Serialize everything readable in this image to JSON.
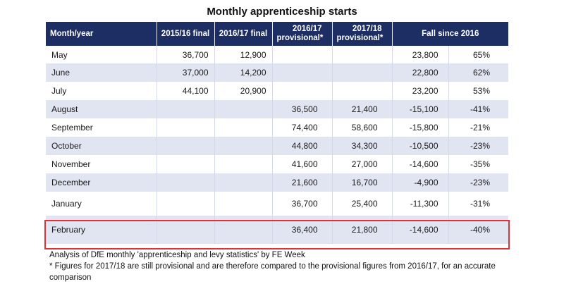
{
  "title": "Monthly apprenticeship starts",
  "chart_data": {
    "type": "table",
    "title": "Monthly apprenticeship starts",
    "columns": [
      "Month/year",
      "2015/16 final",
      "2016/17 final",
      "2016/17 provisional*",
      "2017/18 provisional*",
      "Fall since 2016",
      ""
    ],
    "headers": {
      "month": "Month/year",
      "c1516": "2015/16 final",
      "c1617": "2016/17 final",
      "p1617_a": "2016/17",
      "p1617_b": "provisional*",
      "p1718_a": "2017/18",
      "p1718_b": "provisional*",
      "fall": "Fall since 2016"
    },
    "rows": [
      [
        "May",
        "36,700",
        "12,900",
        "",
        "",
        "23,800",
        "65%"
      ],
      [
        "June",
        "37,000",
        "14,200",
        "",
        "",
        "22,800",
        "62%"
      ],
      [
        "July",
        "44,100",
        "20,900",
        "",
        "",
        "23,200",
        "53%"
      ],
      [
        "August",
        "",
        "",
        "36,500",
        "21,400",
        "-15,100",
        "-41%"
      ],
      [
        "September",
        "",
        "",
        "74,400",
        "58,600",
        "-15,800",
        "-21%"
      ],
      [
        "October",
        "",
        "",
        "44,800",
        "34,300",
        "-10,500",
        "-23%"
      ],
      [
        "November",
        "",
        "",
        "41,600",
        "27,000",
        "-14,600",
        "-35%"
      ],
      [
        "December",
        "",
        "",
        "21,600",
        "16,700",
        "-4,900",
        "-23%"
      ],
      [
        "January",
        "",
        "",
        "36,700",
        "25,400",
        "-11,300",
        "-31%"
      ],
      [
        "February",
        "",
        "",
        "36,400",
        "21,800",
        "-14,600",
        "-40%"
      ]
    ],
    "highlighted_row": "February",
    "highlight_color": "#e0303a",
    "header_color": "#1d2e64",
    "band_color": "#e1e5f2"
  },
  "notes": {
    "source": "Analysis of DfE monthly 'apprenticeship and levy statistics' by FE Week",
    "footnote": "* Figures for 2017/18 are still provisional and are therefore compared to the provisional figures from 2016/17, for an accurate comparison"
  }
}
